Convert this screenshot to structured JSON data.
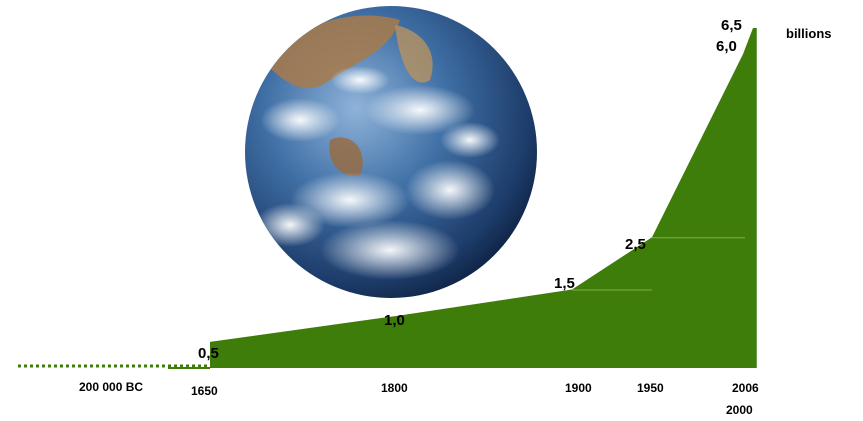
{
  "chart_data": {
    "type": "area",
    "title": "",
    "xlabel": "",
    "ylabel": "",
    "unit": "billions",
    "x": [
      1650,
      1800,
      1900,
      1950,
      2000,
      2006
    ],
    "values": [
      0.5,
      1.0,
      1.5,
      2.5,
      6.0,
      6.5
    ],
    "value_labels": [
      "0,5",
      "1,0",
      "1,5",
      "2,5",
      "6,0",
      "6,5"
    ],
    "x_tick_labels": [
      "200 000 BC",
      "1650",
      "1800",
      "1900",
      "1950",
      "2006",
      "2000"
    ],
    "prehistory_label": "200 000 BC",
    "fill_color": "#3f7d0a",
    "dotted_line_color": "#3f7d0a",
    "decoration": "earth-globe-image",
    "grid": false,
    "legend": "none"
  }
}
